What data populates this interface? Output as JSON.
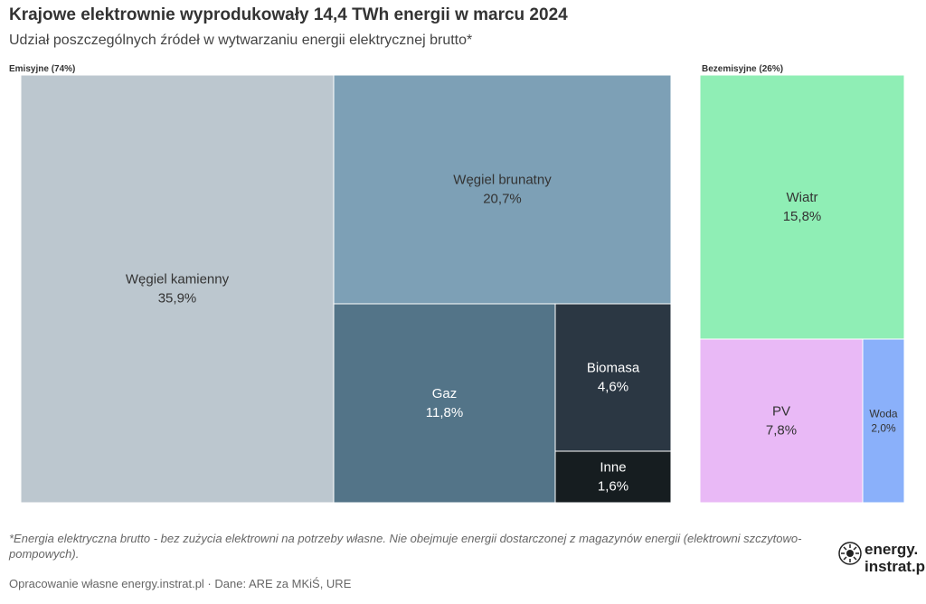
{
  "header": {
    "title": "Krajowe elektrownie wyprodukowały 14,4 TWh energii w marcu 2024",
    "subtitle": "Udział poszczególnych źródeł w wytwarzaniu energii elektrycznej brutto*"
  },
  "chart_data": {
    "type": "treemap",
    "title": "Krajowe elektrownie wyprodukowały 14,4 TWh energii w marcu 2024",
    "subtitle": "Udział poszczególnych źródeł w wytwarzaniu energii elektrycznej brutto*",
    "groups": [
      {
        "label": "Emisyjne (74%)",
        "items": [
          {
            "name": "Węgiel kamienny",
            "label": "35,9%",
            "value": 35.9,
            "color": "#bcc7cf"
          },
          {
            "name": "Węgiel brunatny",
            "label": "20,7%",
            "value": 20.7,
            "color": "#7da0b6"
          },
          {
            "name": "Gaz",
            "label": "11,8%",
            "value": 11.8,
            "color": "#537488"
          },
          {
            "name": "Biomasa",
            "label": "4,6%",
            "value": 4.6,
            "color": "#2b3743"
          },
          {
            "name": "Inne",
            "label": "1,6%",
            "value": 1.6,
            "color": "#161d20"
          }
        ]
      },
      {
        "label": "Bezemisyjne (26%)",
        "items": [
          {
            "name": "Wiatr",
            "label": "15,8%",
            "value": 15.8,
            "color": "#8feeb5"
          },
          {
            "name": "PV",
            "label": "7,8%",
            "value": 7.8,
            "color": "#e9b9f6"
          },
          {
            "name": "Woda",
            "label": "2,0%",
            "value": 2.0,
            "color": "#8ab0fa"
          }
        ]
      }
    ]
  },
  "footer": {
    "note": "*Energia elektryczna brutto - bez zużycia elektrowni na potrzeby własne. Nie obejmuje energii dostarczonej z magazynów energii (elektrowni szczytowo-pompowych).",
    "source": "Opracowanie własne energy.instrat.pl · Dane: ARE za MKiŚ, URE",
    "logo_line1": "energy.",
    "logo_line2": "instrat.pl"
  }
}
